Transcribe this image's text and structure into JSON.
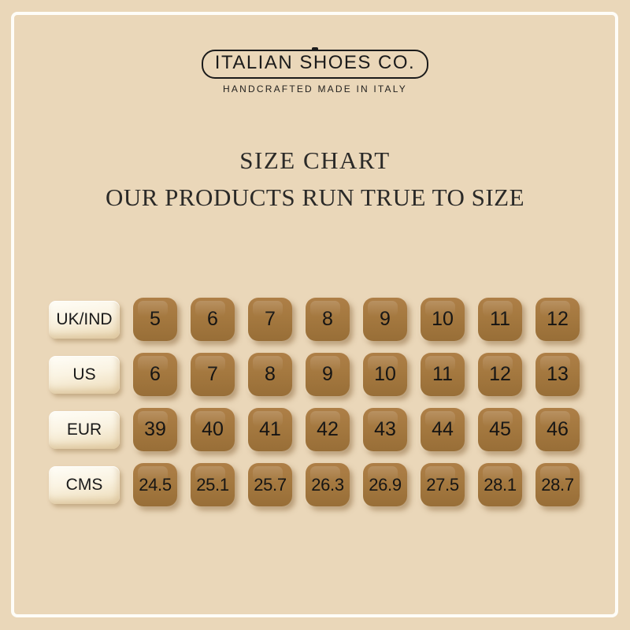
{
  "page": {
    "background_color": "#ead7b9",
    "frame_color": "#fefdf8"
  },
  "brand": {
    "logo_text": "ITALIAN SHOES CO.",
    "tagline": "HANDCRAFTED MADE IN ITALY"
  },
  "heading": {
    "title": "SIZE CHART",
    "subtitle": "OUR PRODUCTS RUN TRUE TO SIZE"
  },
  "size_chart": {
    "rows": [
      {
        "key": "uk-ind",
        "label": "UK/IND",
        "values": [
          "5",
          "6",
          "7",
          "8",
          "9",
          "10",
          "11",
          "12"
        ]
      },
      {
        "key": "us",
        "label": "US",
        "values": [
          "6",
          "7",
          "8",
          "9",
          "10",
          "11",
          "12",
          "13"
        ]
      },
      {
        "key": "eur",
        "label": "EUR",
        "values": [
          "39",
          "40",
          "41",
          "42",
          "43",
          "44",
          "45",
          "46"
        ]
      },
      {
        "key": "cms",
        "label": "CMS",
        "values": [
          "24.5",
          "25.1",
          "25.7",
          "26.3",
          "26.9",
          "27.5",
          "28.1",
          "28.7"
        ]
      }
    ],
    "value_tile_color": "#a57940",
    "label_tile_color": "#faf3e2",
    "number_text_color": "#191919"
  },
  "chart_data": {
    "type": "table",
    "title": "SIZE CHART",
    "subtitle": "OUR PRODUCTS RUN TRUE TO SIZE",
    "row_headers": [
      "UK/IND",
      "US",
      "EUR",
      "CMS"
    ],
    "rows": [
      [
        5,
        6,
        7,
        8,
        9,
        10,
        11,
        12
      ],
      [
        6,
        7,
        8,
        9,
        10,
        11,
        12,
        13
      ],
      [
        39,
        40,
        41,
        42,
        43,
        44,
        45,
        46
      ],
      [
        24.5,
        25.1,
        25.7,
        26.3,
        26.9,
        27.5,
        28.1,
        28.7
      ]
    ]
  }
}
